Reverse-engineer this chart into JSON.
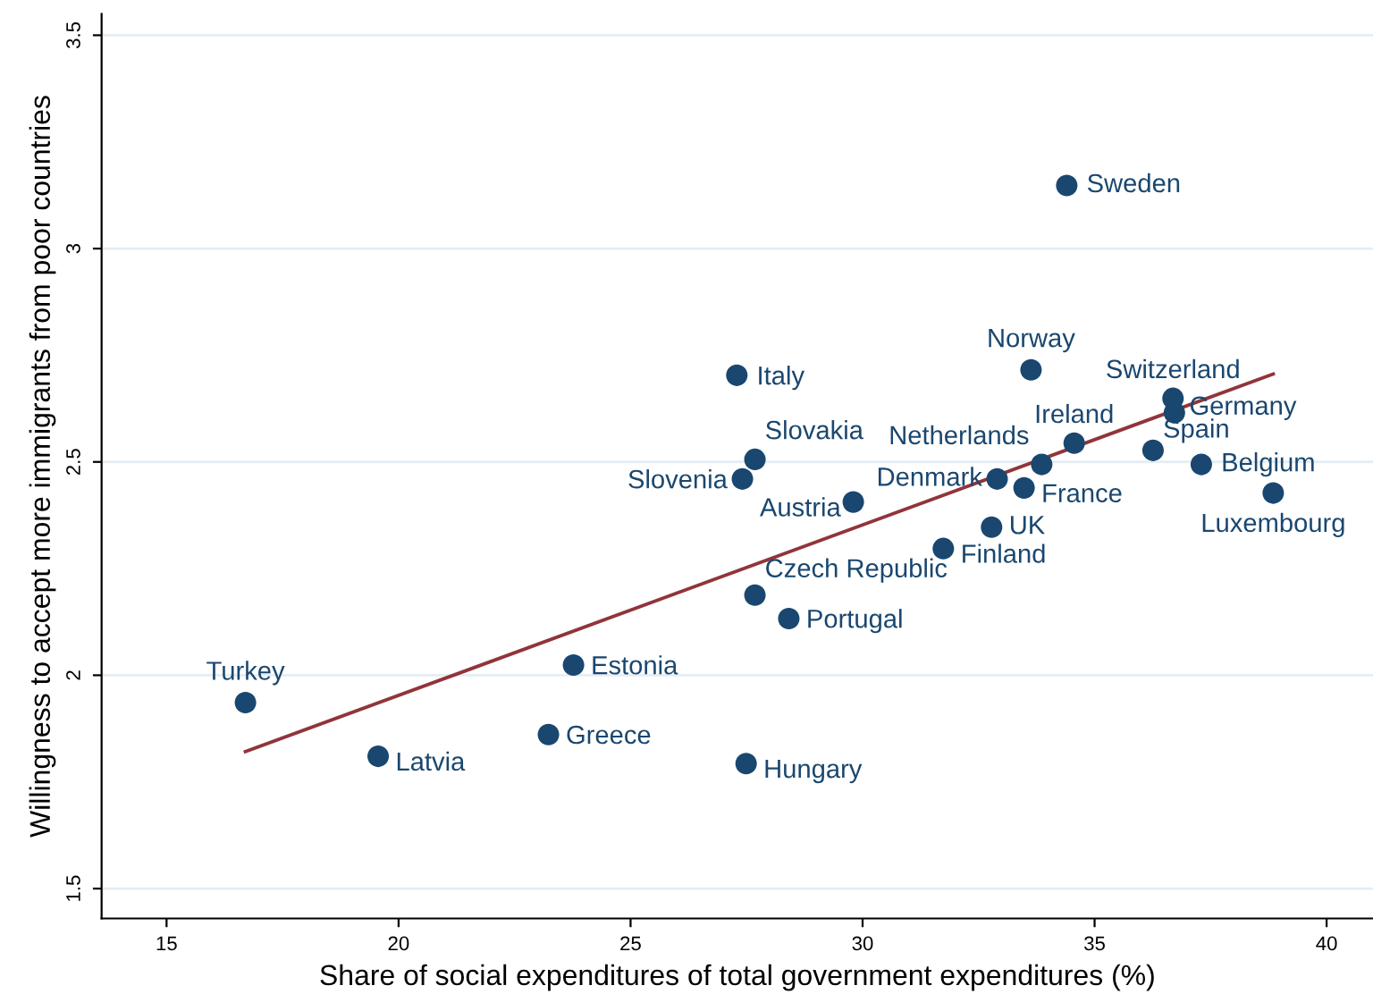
{
  "chart_data": {
    "type": "scatter",
    "xlabel": "Share of social expenditures of total government expenditures (%)",
    "ylabel": "Willingness to accept more immigrants from poor countries",
    "xlim": [
      13.6,
      41
    ],
    "ylim": [
      1.43,
      3.55
    ],
    "xticks": [
      15,
      20,
      25,
      30,
      35,
      40
    ],
    "yticks": [
      1.5,
      2,
      2.5,
      3,
      3.5
    ],
    "grid": "y",
    "marker": "circle",
    "series": [
      {
        "color": "#1a476f",
        "x": [
          34.4,
          33.63,
          27.29,
          36.69,
          36.72,
          34.56,
          36.26,
          27.68,
          33.86,
          37.3,
          27.41,
          32.9,
          33.48,
          38.85,
          29.8,
          32.78,
          31.74,
          27.68,
          28.41,
          23.77,
          16.7,
          23.23,
          19.56,
          27.49
        ],
        "values": [
          3.148,
          2.716,
          2.703,
          2.649,
          2.615,
          2.544,
          2.527,
          2.506,
          2.494,
          2.494,
          2.46,
          2.46,
          2.439,
          2.427,
          2.406,
          2.347,
          2.297,
          2.188,
          2.133,
          2.024,
          1.936,
          1.861,
          1.81,
          1.793
        ]
      },
      {
        "type": "line",
        "color": "#90353b",
        "marker": "none",
        "line_style": "solid",
        "x": [
          16.7,
          38.85
        ],
        "values": [
          1.821,
          2.706
        ]
      }
    ],
    "annotations": [
      {
        "text": "Sweden",
        "x": 34.4,
        "y": 3.148
      },
      {
        "text": "Norway",
        "x": 33.63,
        "y": 2.716
      },
      {
        "text": "Italy",
        "x": 27.29,
        "y": 2.703
      },
      {
        "text": "Switzerland",
        "x": 36.69,
        "y": 2.649
      },
      {
        "text": "Germany",
        "x": 36.72,
        "y": 2.615
      },
      {
        "text": "Ireland",
        "x": 34.56,
        "y": 2.544
      },
      {
        "text": "Spain",
        "x": 36.26,
        "y": 2.527
      },
      {
        "text": "Slovakia",
        "x": 27.68,
        "y": 2.506
      },
      {
        "text": "Netherlands",
        "x": 33.86,
        "y": 2.494
      },
      {
        "text": "Belgium",
        "x": 37.3,
        "y": 2.494
      },
      {
        "text": "Slovenia",
        "x": 27.41,
        "y": 2.46
      },
      {
        "text": "Denmark",
        "x": 32.9,
        "y": 2.46
      },
      {
        "text": "France",
        "x": 33.48,
        "y": 2.439
      },
      {
        "text": "Luxembourg",
        "x": 38.85,
        "y": 2.427
      },
      {
        "text": "Austria",
        "x": 29.8,
        "y": 2.406
      },
      {
        "text": "UK",
        "x": 32.78,
        "y": 2.347
      },
      {
        "text": "Finland",
        "x": 31.74,
        "y": 2.297
      },
      {
        "text": "Czech Republic",
        "x": 27.68,
        "y": 2.188
      },
      {
        "text": "Portugal",
        "x": 28.41,
        "y": 2.133
      },
      {
        "text": "Estonia",
        "x": 23.77,
        "y": 2.024
      },
      {
        "text": "Turkey",
        "x": 16.7,
        "y": 1.936
      },
      {
        "text": "Greece",
        "x": 23.23,
        "y": 1.861
      },
      {
        "text": "Latvia",
        "x": 19.56,
        "y": 1.81
      },
      {
        "text": "Hungary",
        "x": 27.49,
        "y": 1.793
      }
    ]
  }
}
